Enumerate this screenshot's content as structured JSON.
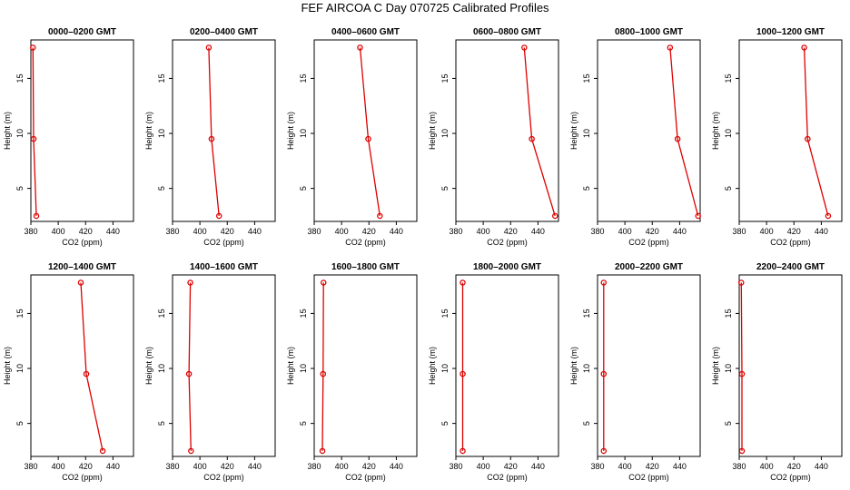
{
  "title": "FEF AIRCOA C  Day 070725  Calibrated Profiles",
  "chart_data": [
    {
      "type": "line",
      "title": "0000–0200 GMT",
      "xlabel": "CO2 (ppm)",
      "ylabel": "Height (m)",
      "xlim": [
        380,
        455
      ],
      "ylim": [
        2,
        18.5
      ],
      "xticks": [
        380,
        400,
        420,
        440
      ],
      "yticks": [
        5,
        10,
        15
      ],
      "color": "#dd0000",
      "height": [
        2.5,
        9.5,
        17.8
      ],
      "co2": [
        384.0,
        382.0,
        381.5
      ],
      "error": [
        0,
        0,
        0
      ]
    },
    {
      "type": "line",
      "title": "0200–0400 GMT",
      "xlabel": "CO2 (ppm)",
      "ylabel": "Height (m)",
      "xlim": [
        380,
        455
      ],
      "ylim": [
        2,
        18.5
      ],
      "xticks": [
        380,
        400,
        420,
        440
      ],
      "yticks": [
        5,
        10,
        15
      ],
      "color": "#dd0000",
      "height": [
        2.5,
        9.5,
        17.8
      ],
      "co2": [
        414.0,
        408.5,
        406.5
      ],
      "error": [
        0,
        0,
        0
      ]
    },
    {
      "type": "line",
      "title": "0400–0600 GMT",
      "xlabel": "CO2 (ppm)",
      "ylabel": "Height (m)",
      "xlim": [
        380,
        455
      ],
      "ylim": [
        2,
        18.5
      ],
      "xticks": [
        380,
        400,
        420,
        440
      ],
      "yticks": [
        5,
        10,
        15
      ],
      "color": "#dd0000",
      "height": [
        2.5,
        9.5,
        17.8
      ],
      "co2": [
        428.0,
        419.5,
        413.5
      ],
      "error": [
        0,
        0,
        0
      ]
    },
    {
      "type": "line",
      "title": "0600–0800 GMT",
      "xlabel": "CO2 (ppm)",
      "ylabel": "Height (m)",
      "xlim": [
        380,
        455
      ],
      "ylim": [
        2,
        18.5
      ],
      "xticks": [
        380,
        400,
        420,
        440
      ],
      "yticks": [
        5,
        10,
        15
      ],
      "color": "#dd0000",
      "height": [
        2.5,
        9.5,
        17.8
      ],
      "co2": [
        452.5,
        435.5,
        430.0
      ],
      "error": [
        0,
        0,
        0
      ]
    },
    {
      "type": "line",
      "title": "0800–1000 GMT",
      "xlabel": "CO2 (ppm)",
      "ylabel": "Height (m)",
      "xlim": [
        380,
        455
      ],
      "ylim": [
        2,
        18.5
      ],
      "xticks": [
        380,
        400,
        420,
        440
      ],
      "yticks": [
        5,
        10,
        15
      ],
      "color": "#dd0000",
      "height": [
        2.5,
        9.5,
        17.8
      ],
      "co2": [
        453.5,
        438.5,
        433.0
      ],
      "error": [
        0,
        0,
        0
      ]
    },
    {
      "type": "line",
      "title": "1000–1200 GMT",
      "xlabel": "CO2 (ppm)",
      "ylabel": "Height (m)",
      "xlim": [
        380,
        455
      ],
      "ylim": [
        2,
        18.5
      ],
      "xticks": [
        380,
        400,
        420,
        440
      ],
      "yticks": [
        5,
        10,
        15
      ],
      "color": "#dd0000",
      "height": [
        2.5,
        9.5,
        17.8
      ],
      "co2": [
        445.0,
        430.0,
        427.5
      ],
      "error": [
        0,
        0,
        0
      ]
    },
    {
      "type": "line",
      "title": "1200–1400 GMT",
      "xlabel": "CO2 (ppm)",
      "ylabel": "Height (m)",
      "xlim": [
        380,
        455
      ],
      "ylim": [
        2,
        18.5
      ],
      "xticks": [
        380,
        400,
        420,
        440
      ],
      "yticks": [
        5,
        10,
        15
      ],
      "color": "#dd0000",
      "height": [
        2.5,
        9.5,
        17.8
      ],
      "co2": [
        432.5,
        420.5,
        416.5
      ],
      "error": [
        0,
        0,
        0
      ]
    },
    {
      "type": "line",
      "title": "1400–1600 GMT",
      "xlabel": "CO2 (ppm)",
      "ylabel": "Height (m)",
      "xlim": [
        380,
        455
      ],
      "ylim": [
        2,
        18.5
      ],
      "xticks": [
        380,
        400,
        420,
        440
      ],
      "yticks": [
        5,
        10,
        15
      ],
      "color": "#dd0000",
      "height": [
        2.5,
        9.5,
        17.8
      ],
      "co2": [
        393.5,
        392.0,
        393.0
      ],
      "error": [
        0,
        0,
        0
      ]
    },
    {
      "type": "line",
      "title": "1600–1800 GMT",
      "xlabel": "CO2 (ppm)",
      "ylabel": "Height (m)",
      "xlim": [
        380,
        455
      ],
      "ylim": [
        2,
        18.5
      ],
      "xticks": [
        380,
        400,
        420,
        440
      ],
      "yticks": [
        5,
        10,
        15
      ],
      "color": "#dd0000",
      "height": [
        2.5,
        9.5,
        17.8
      ],
      "co2": [
        386.0,
        386.5,
        386.8
      ],
      "error": [
        0,
        0,
        0
      ]
    },
    {
      "type": "line",
      "title": "1800–2000 GMT",
      "xlabel": "CO2 (ppm)",
      "ylabel": "Height (m)",
      "xlim": [
        380,
        455
      ],
      "ylim": [
        2,
        18.5
      ],
      "xticks": [
        380,
        400,
        420,
        440
      ],
      "yticks": [
        5,
        10,
        15
      ],
      "color": "#dd0000",
      "height": [
        2.5,
        9.5,
        17.8
      ],
      "co2": [
        385.0,
        385.0,
        385.0
      ],
      "error": [
        0,
        0,
        0
      ]
    },
    {
      "type": "line",
      "title": "2000–2200 GMT",
      "xlabel": "CO2 (ppm)",
      "ylabel": "Height (m)",
      "xlim": [
        380,
        455
      ],
      "ylim": [
        2,
        18.5
      ],
      "xticks": [
        380,
        400,
        420,
        440
      ],
      "yticks": [
        5,
        10,
        15
      ],
      "color": "#dd0000",
      "height": [
        2.5,
        9.5,
        17.8
      ],
      "co2": [
        384.5,
        384.5,
        384.5
      ],
      "error": [
        0,
        0,
        0
      ]
    },
    {
      "type": "line",
      "title": "2200–2400 GMT",
      "xlabel": "CO2 (ppm)",
      "ylabel": "Height (m)",
      "xlim": [
        380,
        455
      ],
      "ylim": [
        2,
        18.5
      ],
      "xticks": [
        380,
        400,
        420,
        440
      ],
      "yticks": [
        5,
        10,
        15
      ],
      "color": "#dd0000",
      "height": [
        2.5,
        9.5,
        17.8
      ],
      "co2": [
        382.0,
        382.0,
        381.5
      ],
      "error": [
        0,
        0,
        0
      ]
    }
  ]
}
